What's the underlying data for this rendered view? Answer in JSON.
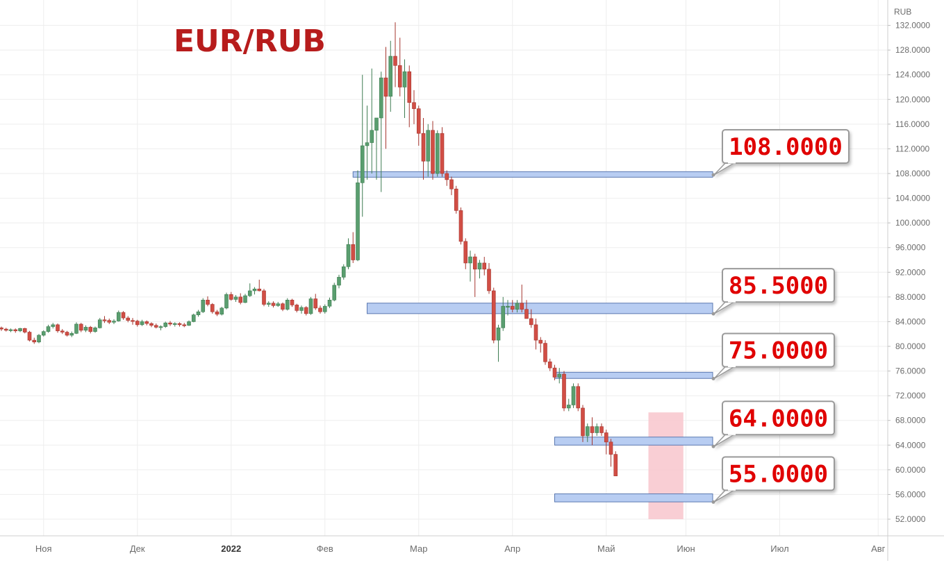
{
  "chart_data": {
    "type": "candlestick",
    "title": "EUR/RUB",
    "currency_label": "RUB",
    "ylim": [
      50.5,
      134
    ],
    "y_ticks": [
      "52.0000",
      "56.0000",
      "60.0000",
      "64.0000",
      "68.0000",
      "72.0000",
      "76.0000",
      "80.0000",
      "84.0000",
      "88.0000",
      "92.0000",
      "96.0000",
      "100.0000",
      "104.0000",
      "108.0000",
      "112.0000",
      "116.0000",
      "120.0000",
      "124.0000",
      "128.0000",
      "132.0000"
    ],
    "x_ticks": [
      {
        "label": "Ноя",
        "index": 9,
        "bold": false
      },
      {
        "label": "Дек",
        "index": 29,
        "bold": false
      },
      {
        "label": "2022",
        "index": 49,
        "bold": true
      },
      {
        "label": "Фев",
        "index": 69,
        "bold": false
      },
      {
        "label": "Мар",
        "index": 89,
        "bold": false
      },
      {
        "label": "Апр",
        "index": 109,
        "bold": false
      },
      {
        "label": "Май",
        "index": 129,
        "bold": false
      },
      {
        "label": "Июн",
        "index": 146,
        "bold": false
      },
      {
        "label": "Июл",
        "index": 166,
        "bold": false
      },
      {
        "label": "Авг",
        "index": 187,
        "bold": false
      }
    ],
    "candles": [
      [
        83.0,
        83.2,
        82.5,
        82.8
      ],
      [
        82.8,
        83.0,
        82.4,
        82.6
      ],
      [
        82.6,
        82.9,
        82.3,
        82.7
      ],
      [
        82.7,
        82.9,
        82.2,
        82.5
      ],
      [
        82.5,
        83.0,
        82.3,
        82.9
      ],
      [
        82.9,
        83.0,
        82.1,
        82.3
      ],
      [
        82.3,
        82.5,
        80.8,
        81.0
      ],
      [
        81.0,
        81.4,
        80.4,
        80.7
      ],
      [
        80.7,
        82.0,
        80.5,
        81.8
      ],
      [
        81.8,
        82.6,
        81.6,
        82.4
      ],
      [
        82.4,
        83.5,
        82.2,
        83.2
      ],
      [
        83.2,
        83.8,
        82.9,
        83.5
      ],
      [
        83.5,
        83.7,
        82.2,
        82.5
      ],
      [
        82.5,
        82.8,
        82.0,
        82.3
      ],
      [
        82.3,
        82.5,
        81.6,
        81.8
      ],
      [
        81.8,
        82.4,
        81.5,
        82.1
      ],
      [
        82.1,
        83.9,
        82.0,
        83.6
      ],
      [
        83.6,
        83.8,
        82.3,
        82.6
      ],
      [
        82.6,
        83.4,
        82.3,
        83.1
      ],
      [
        83.1,
        83.3,
        82.1,
        82.4
      ],
      [
        82.4,
        83.2,
        82.2,
        83.0
      ],
      [
        83.0,
        84.6,
        82.9,
        84.3
      ],
      [
        84.3,
        84.9,
        83.8,
        84.2
      ],
      [
        84.2,
        84.5,
        83.6,
        83.9
      ],
      [
        83.9,
        84.4,
        83.6,
        84.1
      ],
      [
        84.1,
        85.8,
        84.0,
        85.5
      ],
      [
        85.5,
        85.7,
        84.3,
        84.6
      ],
      [
        84.6,
        84.9,
        83.9,
        84.2
      ],
      [
        84.2,
        84.6,
        83.5,
        84.1
      ],
      [
        84.1,
        84.3,
        83.2,
        83.5
      ],
      [
        83.5,
        84.3,
        83.3,
        84.0
      ],
      [
        84.0,
        84.2,
        83.4,
        83.7
      ],
      [
        83.7,
        83.9,
        83.1,
        83.4
      ],
      [
        83.4,
        83.7,
        82.9,
        83.1
      ],
      [
        83.1,
        83.4,
        82.6,
        83.2
      ],
      [
        83.2,
        84.0,
        83.0,
        83.8
      ],
      [
        83.8,
        84.1,
        83.3,
        83.6
      ],
      [
        83.6,
        83.9,
        83.2,
        83.7
      ],
      [
        83.7,
        83.9,
        83.2,
        83.5
      ],
      [
        83.5,
        83.8,
        83.1,
        83.4
      ],
      [
        83.4,
        84.2,
        83.3,
        84.0
      ],
      [
        84.0,
        85.3,
        83.9,
        85.1
      ],
      [
        85.1,
        85.9,
        84.8,
        85.6
      ],
      [
        85.6,
        87.8,
        85.4,
        87.5
      ],
      [
        87.5,
        88.1,
        86.5,
        86.8
      ],
      [
        86.8,
        87.0,
        85.3,
        85.6
      ],
      [
        85.6,
        85.9,
        84.9,
        85.2
      ],
      [
        85.2,
        86.4,
        85.0,
        86.2
      ],
      [
        86.2,
        88.7,
        86.0,
        88.4
      ],
      [
        88.4,
        88.8,
        87.4,
        87.6
      ],
      [
        87.6,
        88.3,
        87.2,
        88.0
      ],
      [
        88.0,
        88.6,
        86.8,
        87.1
      ],
      [
        87.1,
        88.5,
        87.0,
        88.2
      ],
      [
        88.2,
        90.2,
        88.0,
        89.0
      ],
      [
        89.0,
        89.6,
        88.4,
        89.3
      ],
      [
        89.3,
        90.8,
        88.9,
        89.0
      ],
      [
        89.0,
        89.3,
        86.5,
        86.8
      ],
      [
        86.8,
        87.3,
        86.4,
        87.0
      ],
      [
        87.0,
        87.3,
        86.3,
        86.6
      ],
      [
        86.6,
        87.2,
        86.4,
        86.9
      ],
      [
        86.9,
        87.1,
        85.7,
        86.0
      ],
      [
        86.0,
        87.8,
        85.8,
        87.5
      ],
      [
        87.5,
        87.7,
        86.4,
        86.7
      ],
      [
        86.7,
        86.9,
        85.5,
        85.8
      ],
      [
        85.8,
        86.6,
        85.3,
        86.3
      ],
      [
        86.3,
        86.5,
        85.0,
        85.3
      ],
      [
        85.3,
        88.0,
        85.1,
        87.7
      ],
      [
        87.7,
        88.5,
        85.9,
        86.2
      ],
      [
        86.2,
        86.6,
        85.3,
        85.6
      ],
      [
        85.6,
        86.8,
        85.3,
        86.5
      ],
      [
        86.5,
        87.9,
        86.2,
        87.5
      ],
      [
        87.5,
        90.3,
        87.3,
        89.9
      ],
      [
        89.9,
        91.6,
        89.4,
        91.2
      ],
      [
        91.2,
        93.3,
        90.8,
        92.9
      ],
      [
        92.9,
        97.5,
        92.5,
        96.5
      ],
      [
        96.5,
        98.5,
        93.5,
        94.0
      ],
      [
        94.0,
        108.5,
        93.8,
        106.5
      ],
      [
        106.5,
        124.0,
        101.0,
        112.5
      ],
      [
        112.5,
        119.0,
        107.0,
        113.0
      ],
      [
        113.0,
        125.0,
        108.0,
        115.0
      ],
      [
        115.0,
        117.0,
        107.0,
        117.0
      ],
      [
        117.0,
        124.5,
        105.0,
        123.5
      ],
      [
        123.5,
        128.5,
        112.0,
        120.5
      ],
      [
        120.5,
        129.5,
        118.0,
        127.0
      ],
      [
        127.0,
        132.5,
        122.0,
        125.5
      ],
      [
        125.5,
        130.0,
        120.5,
        122.0
      ],
      [
        122.0,
        126.5,
        117.0,
        124.5
      ],
      [
        124.5,
        125.5,
        115.5,
        119.5
      ],
      [
        119.5,
        121.5,
        116.0,
        118.5
      ],
      [
        118.5,
        119.0,
        112.5,
        114.5
      ],
      [
        114.5,
        117.0,
        107.0,
        110.0
      ],
      [
        110.0,
        116.0,
        107.5,
        115.0
      ],
      [
        115.0,
        116.5,
        107.0,
        108.0
      ],
      [
        108.0,
        115.0,
        107.5,
        114.5
      ],
      [
        114.5,
        115.5,
        107.5,
        108.0
      ],
      [
        108.0,
        108.5,
        106.0,
        107.0
      ],
      [
        107.0,
        107.5,
        104.5,
        105.5
      ],
      [
        105.5,
        106.0,
        101.5,
        102.0
      ],
      [
        102.0,
        102.5,
        96.5,
        97.0
      ],
      [
        97.0,
        97.5,
        92.5,
        93.5
      ],
      [
        93.5,
        95.5,
        90.5,
        94.5
      ],
      [
        94.5,
        95.0,
        88.0,
        92.5
      ],
      [
        92.5,
        94.0,
        91.0,
        93.5
      ],
      [
        93.5,
        94.5,
        91.5,
        92.5
      ],
      [
        92.5,
        93.5,
        88.5,
        89.0
      ],
      [
        89.0,
        89.5,
        80.5,
        81.0
      ],
      [
        81.0,
        83.5,
        77.5,
        83.0
      ],
      [
        83.0,
        88.0,
        82.5,
        86.5
      ],
      [
        86.5,
        87.5,
        85.0,
        86.5
      ],
      [
        86.5,
        87.5,
        85.5,
        86.0
      ],
      [
        86.0,
        87.5,
        85.5,
        87.0
      ],
      [
        87.0,
        90.0,
        85.5,
        86.0
      ],
      [
        86.0,
        87.5,
        84.5,
        84.5
      ],
      [
        84.5,
        86.0,
        83.0,
        83.5
      ],
      [
        83.5,
        84.5,
        79.5,
        81.0
      ],
      [
        81.0,
        81.5,
        79.0,
        80.5
      ],
      [
        80.5,
        81.0,
        77.0,
        77.5
      ],
      [
        77.5,
        78.0,
        76.0,
        76.5
      ],
      [
        76.5,
        77.0,
        74.5,
        75.0
      ],
      [
        75.0,
        76.5,
        74.0,
        75.5
      ],
      [
        75.5,
        76.0,
        69.5,
        70.0
      ],
      [
        70.0,
        71.5,
        69.5,
        70.5
      ],
      [
        70.5,
        74.0,
        70.0,
        73.5
      ],
      [
        73.5,
        74.0,
        69.5,
        70.0
      ],
      [
        70.0,
        70.5,
        64.5,
        65.5
      ],
      [
        65.5,
        67.5,
        64.5,
        67.0
      ],
      [
        67.0,
        68.5,
        64.0,
        66.0
      ],
      [
        66.0,
        67.5,
        65.5,
        67.0
      ],
      [
        67.0,
        67.5,
        65.5,
        66.0
      ],
      [
        66.0,
        66.5,
        62.5,
        64.5
      ],
      [
        64.5,
        65.0,
        60.5,
        62.5
      ],
      [
        62.5,
        63.0,
        59.0,
        59.0
      ]
    ],
    "resistance_zones": [
      {
        "label": "108.0000",
        "value": 108.0,
        "zone": [
          107.4,
          108.3
        ],
        "start_index": 75
      },
      {
        "label": "85.5000",
        "value": 85.5,
        "zone": [
          85.3,
          87.0
        ],
        "start_index": 78
      },
      {
        "label": "75.0000",
        "value": 75.0,
        "zone": [
          74.8,
          75.8
        ],
        "start_index": 118
      },
      {
        "label": "64.0000",
        "value": 64.0,
        "zone": [
          64.0,
          65.3
        ],
        "start_index": 118
      },
      {
        "label": "55.0000",
        "value": 55.0,
        "zone": [
          54.8,
          56.1
        ],
        "start_index": 118
      }
    ],
    "target_zone": {
      "price_range": [
        52.0,
        69.3
      ],
      "start_index": 138,
      "end_index": 145
    },
    "colors": {
      "up": "#5a9e6f",
      "down": "#d14e45",
      "zone_fill": "#b8cdf2",
      "zone_stroke": "#5a78b0",
      "target_fill": "#f8c6cc",
      "title": "#b71c1c",
      "callout_text": "#e00000",
      "grid": "#eeeeee",
      "axis_text": "#6b6b6b"
    }
  }
}
